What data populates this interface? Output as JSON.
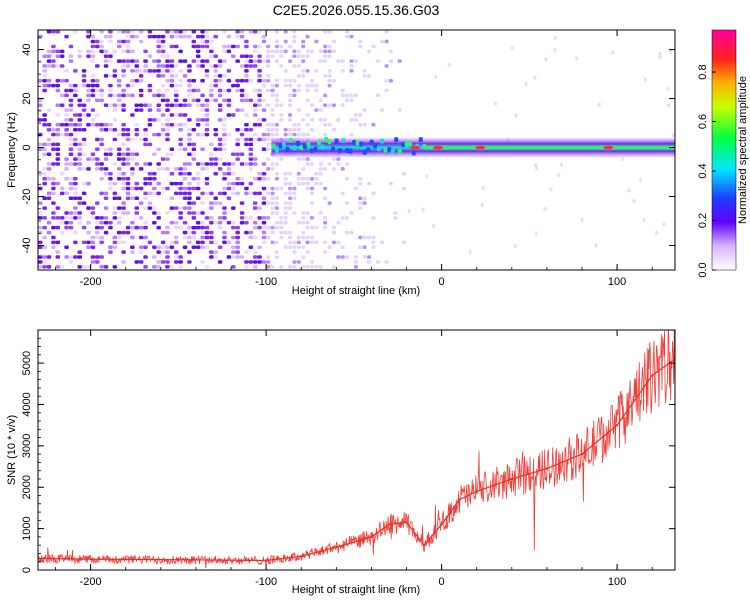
{
  "title": "C2E5.2026.055.15.36.G03",
  "colors": {
    "snr_line": "#ee2a24",
    "spectrogram_low": "#e9d8ff",
    "spectrogram_mid": "#8a1cf0",
    "background": "#ffffff"
  },
  "chart_data": [
    {
      "type": "heatmap",
      "title": "C2E5.2026.055.15.36.G03",
      "xlabel": "Height of straight line (km)",
      "ylabel": "Frequency (Hz)",
      "xlim": [
        -230,
        133
      ],
      "ylim": [
        -50,
        48
      ],
      "xticks": [
        -200,
        -100,
        0,
        100
      ],
      "xtick_labels": [
        "-200",
        "-100",
        "0",
        "100"
      ],
      "yticks": [
        -40,
        -20,
        0,
        20,
        40
      ],
      "ytick_labels": [
        "-40",
        "-20",
        "0",
        "20",
        "40"
      ],
      "colorbar": {
        "label": "Normalized spectral amplitude",
        "range": [
          0,
          0.97
        ],
        "ticks": [
          0.0,
          0.2,
          0.4,
          0.6,
          0.8
        ],
        "tick_labels": [
          "0.0",
          "0.2",
          "0.4",
          "0.6",
          "0.8"
        ]
      },
      "features": {
        "noise_region_km": [
          -230,
          -100
        ],
        "transition_km": [
          -100,
          -20
        ],
        "signal_line_freq_hz": 0,
        "signal_line_start_km": -97,
        "hot_spots_km": [
          -15,
          -2,
          22,
          95
        ]
      }
    },
    {
      "type": "line",
      "xlabel": "Height of straight line (km)",
      "ylabel": "SNR (10 * v/v)",
      "xlim": [
        -230,
        133
      ],
      "ylim": [
        0,
        5800
      ],
      "xticks": [
        -200,
        -100,
        0,
        100
      ],
      "xtick_labels": [
        "-200",
        "-100",
        "0",
        "100"
      ],
      "yticks": [
        0,
        1000,
        2000,
        3000,
        4000,
        5000
      ],
      "ytick_labels": [
        "0",
        "1000",
        "2000",
        "3000",
        "4000",
        "5000"
      ],
      "series": [
        {
          "name": "SNR",
          "x": [
            -230,
            -200,
            -150,
            -100,
            -80,
            -60,
            -40,
            -30,
            -20,
            -10,
            0,
            10,
            20,
            40,
            60,
            80,
            100,
            120,
            133
          ],
          "values": [
            280,
            260,
            250,
            230,
            330,
            550,
            800,
            1100,
            1150,
            600,
            1100,
            1700,
            1900,
            2200,
            2450,
            2800,
            3500,
            4700,
            5100
          ]
        }
      ]
    }
  ]
}
